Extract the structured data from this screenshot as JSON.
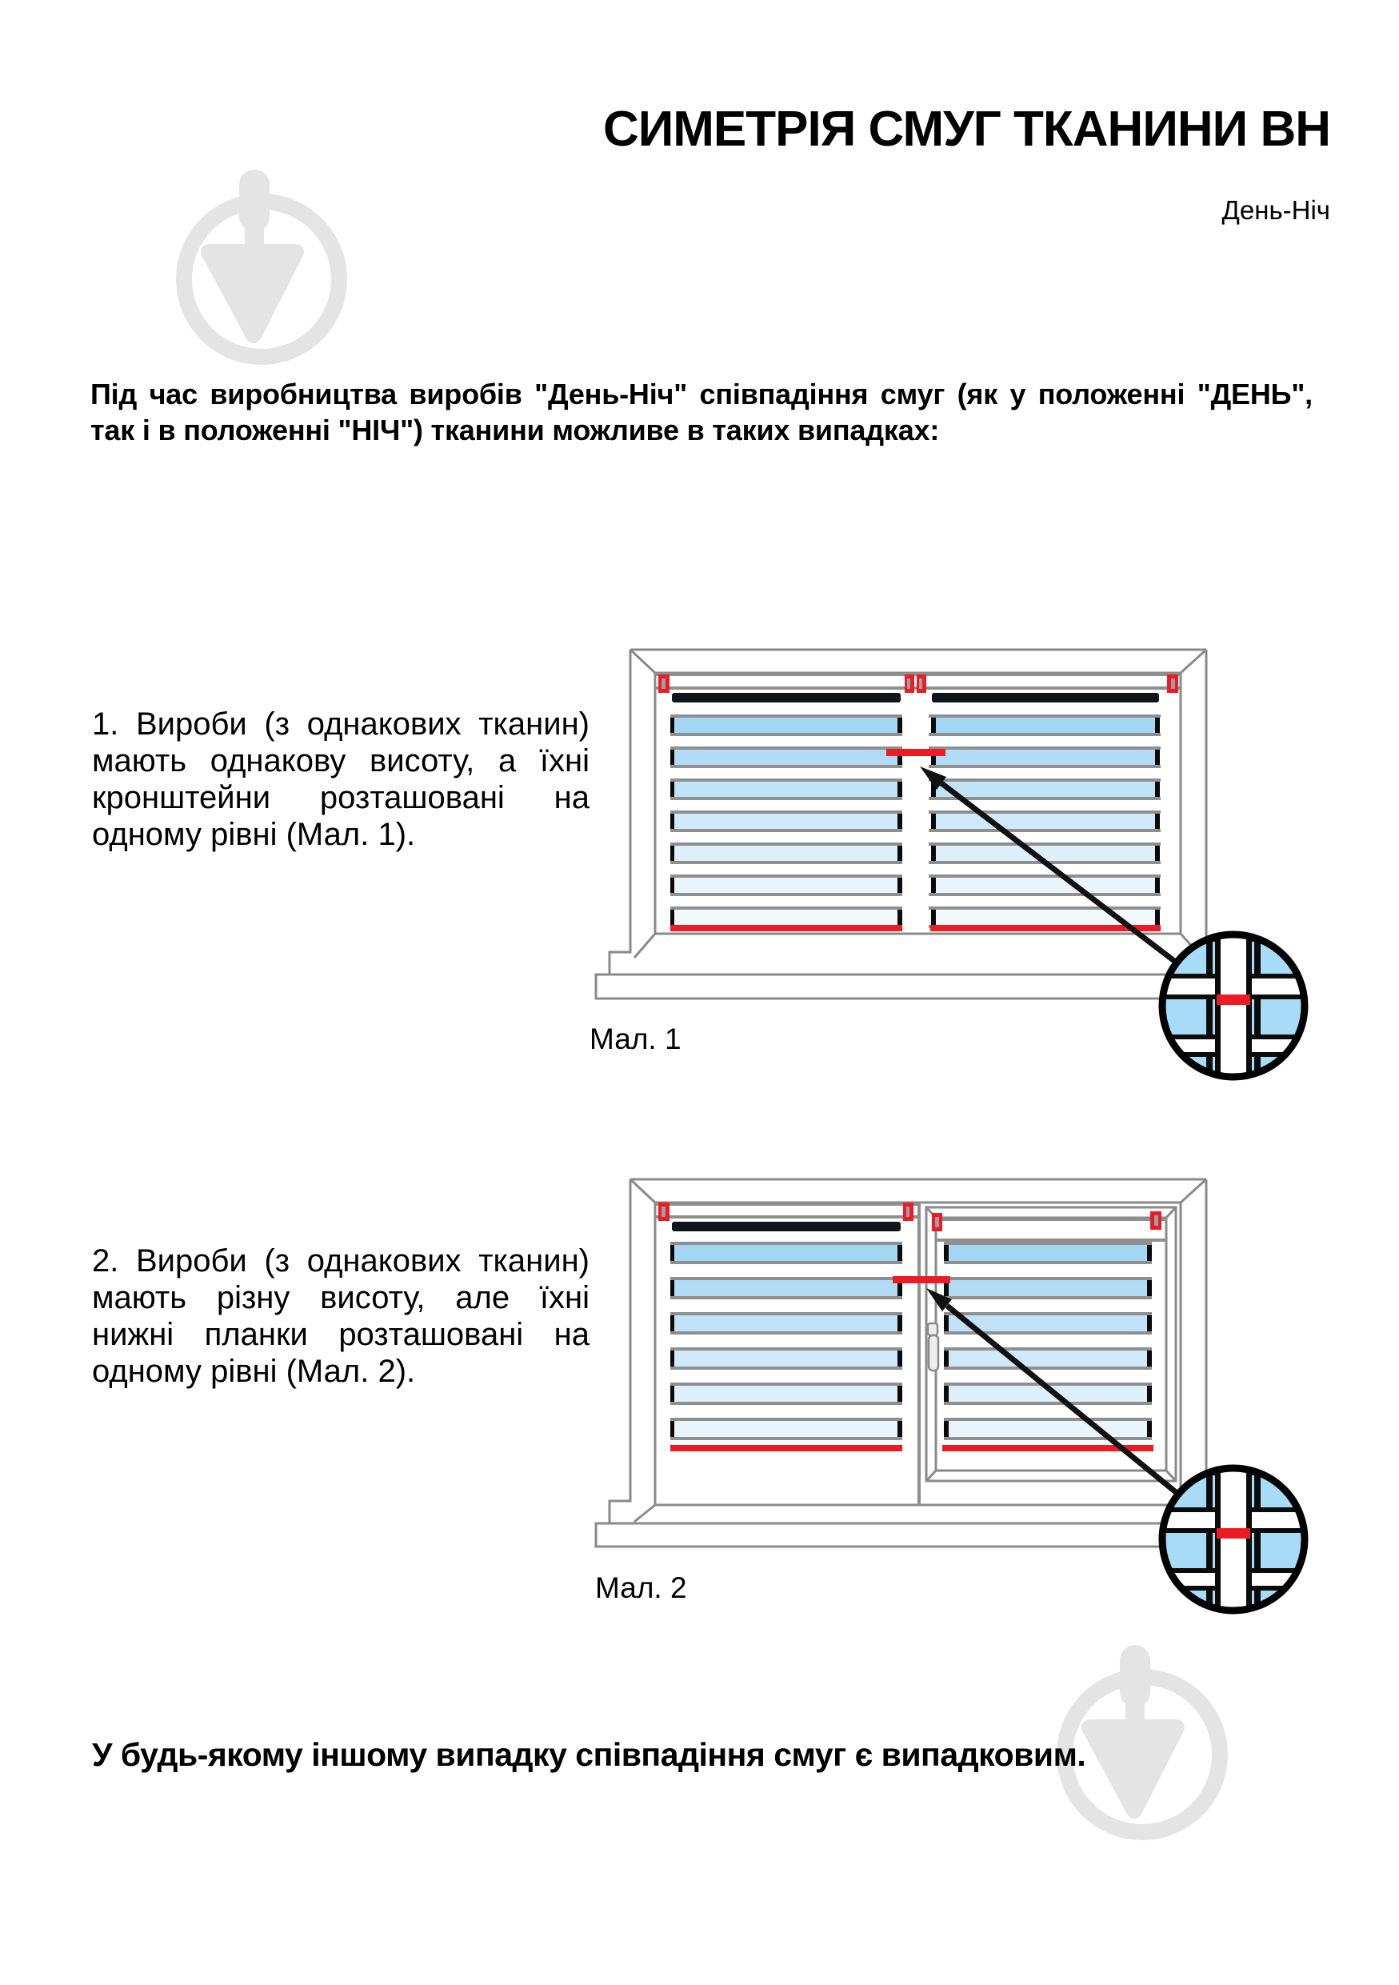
{
  "document": {
    "title": "СИМЕТРІЯ СМУГ ТКАНИНИ ВН",
    "subtitle": "День-Ніч",
    "intro": {
      "lines": [
        "Під час виробництва виробів \"День-Ніч\" співпадіння смуг (як у положенні \"ДЕНЬ\",",
        "так і в положенні \"НІЧ\") тканини можливе в таких випадках:"
      ]
    },
    "item1": {
      "lines": [
        "1. Вироби (з однакових тканин)",
        "мають однакову висоту, а їхні",
        "кронштейни розташовані на",
        "одному рівні (Мал. 1)."
      ]
    },
    "item2": {
      "lines": [
        "2. Вироби (з однакових тканин)",
        "мають різну висоту, але їхні",
        "нижні планки розташовані на",
        "одному рівні (Мал. 2)."
      ]
    },
    "figure1_label": "Мал. 1",
    "figure2_label": "Мал. 2",
    "footer": "У будь-якому іншому випадку співпадіння смуг є випадковим."
  },
  "colors": {
    "accent_red": "#ED1C24",
    "stripe_blue": "#A3D8F4",
    "stripe_navy": "#10151D",
    "frame_gray": "#8A8A8A",
    "watermark_gray": "#E4E4E4"
  },
  "icons": {
    "watermark": "trowel-in-circle-logo",
    "magnifier": "zoom-detail-circle",
    "arrow": "pointer-arrow"
  }
}
